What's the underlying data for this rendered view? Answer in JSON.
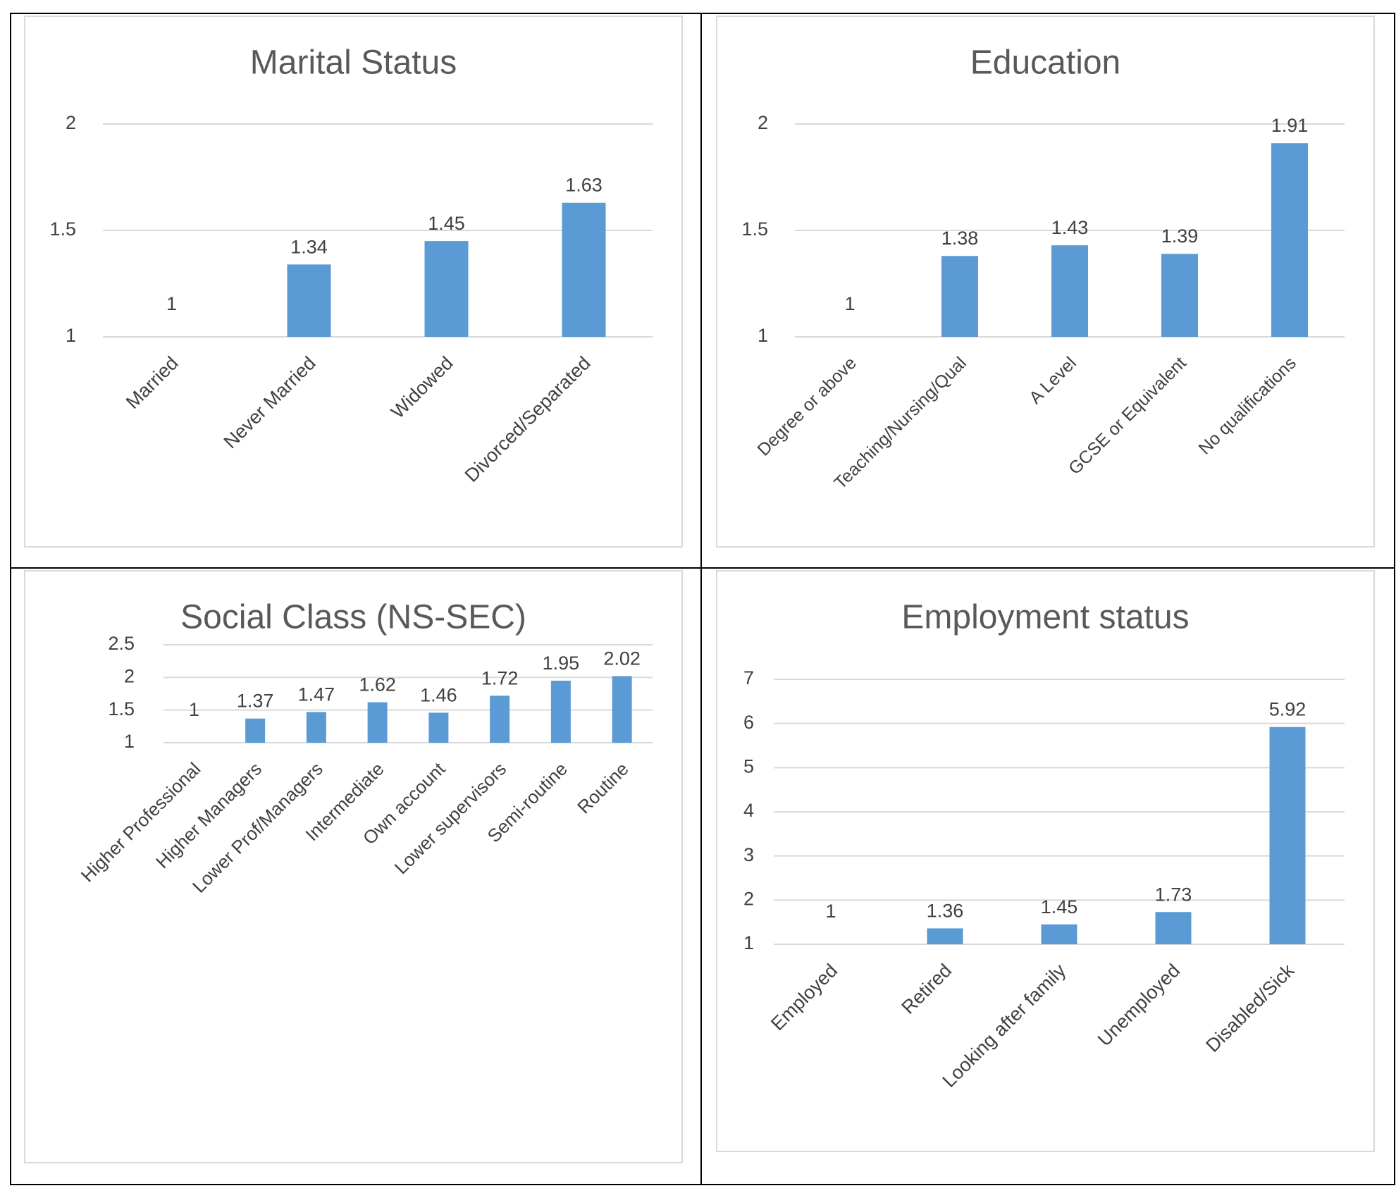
{
  "chart_data": [
    {
      "type": "bar",
      "title": "Marital Status",
      "categories": [
        "Married",
        "Never Married",
        "Widowed",
        "Divorced/Separated"
      ],
      "values": [
        1,
        1.34,
        1.45,
        1.63
      ],
      "value_labels": [
        "1",
        "1.34",
        "1.45",
        "1.63"
      ],
      "yticks": [
        "1",
        "1.5",
        "2"
      ],
      "ylim": [
        1,
        2
      ],
      "grid": true,
      "bar_color": "#5b9bd5"
    },
    {
      "type": "bar",
      "title": "Education",
      "categories": [
        "Degree or above",
        "Teaching/Nursing/Qual",
        "A Level",
        "GCSE or Equivalent",
        "No qualifications"
      ],
      "values": [
        1,
        1.38,
        1.43,
        1.39,
        1.91
      ],
      "value_labels": [
        "1",
        "1.38",
        "1.43",
        "1.39",
        "1.91"
      ],
      "yticks": [
        "1",
        "1.5",
        "2"
      ],
      "ylim": [
        1,
        2
      ],
      "grid": true,
      "bar_color": "#5b9bd5"
    },
    {
      "type": "bar",
      "title": "Social Class (NS-SEC)",
      "categories": [
        "Higher Professional",
        "Higher Managers",
        "Lower Prof/Managers",
        "Intermediate",
        "Own account",
        "Lower supervisors",
        "Semi-routine",
        "Routine"
      ],
      "values": [
        1,
        1.37,
        1.47,
        1.62,
        1.46,
        1.72,
        1.95,
        2.02
      ],
      "value_labels": [
        "1",
        "1.37",
        "1.47",
        "1.62",
        "1.46",
        "1.72",
        "1.95",
        "2.02"
      ],
      "yticks": [
        "1",
        "1.5",
        "2",
        "2.5"
      ],
      "ylim": [
        1,
        2.5
      ],
      "grid": true,
      "bar_color": "#5b9bd5"
    },
    {
      "type": "bar",
      "title": "Employment status",
      "categories": [
        "Employed",
        "Retired",
        "Looking after family",
        "Unemployed",
        "Disabled/Sick"
      ],
      "values": [
        1,
        1.36,
        1.45,
        1.73,
        5.92
      ],
      "value_labels": [
        "1",
        "1.36",
        "1.45",
        "1.73",
        "5.92"
      ],
      "yticks": [
        "1",
        "2",
        "3",
        "4",
        "5",
        "6",
        "7"
      ],
      "ylim": [
        1,
        7
      ],
      "grid": true,
      "bar_color": "#5b9bd5"
    }
  ],
  "colors": {
    "bar": "#5b9bd5",
    "gridline": "#d9d9d9",
    "text": "#404040",
    "title": "#595959",
    "table_border": "#000000"
  }
}
